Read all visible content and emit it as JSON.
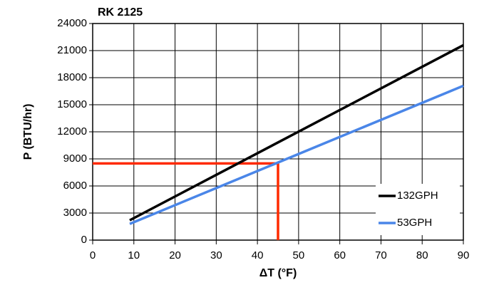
{
  "chart_data": {
    "type": "line",
    "title": "RK 2125",
    "x_label": "ΔT (°F)",
    "y_label": "P (BTU/hr)",
    "x": [
      9,
      90
    ],
    "series": [
      {
        "name": "132GPH",
        "color": "#000000",
        "values": [
          2200,
          21600
        ]
      },
      {
        "name": "53GPH",
        "color": "#4a86e8",
        "values": [
          1800,
          17100
        ]
      }
    ],
    "guide": {
      "x": 45,
      "y": 8500,
      "color": "#ff2a00"
    },
    "xlim": [
      0,
      90
    ],
    "xticks": [
      0,
      10,
      20,
      30,
      40,
      50,
      60,
      70,
      80,
      90
    ],
    "ylim": [
      0,
      24000
    ],
    "yticks": [
      0,
      3000,
      6000,
      9000,
      12000,
      15000,
      18000,
      21000,
      24000
    ],
    "grid": true,
    "legend": "lower right"
  }
}
